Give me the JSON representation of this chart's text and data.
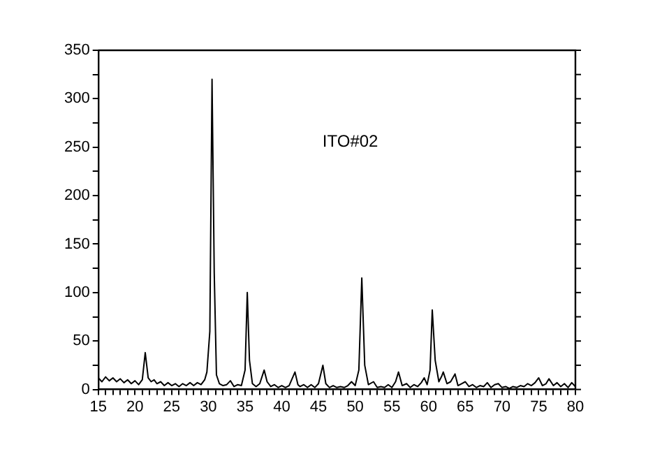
{
  "chart_data": {
    "type": "line",
    "annotations": [
      "ITO#02"
    ],
    "x": [
      15,
      15.5,
      16,
      16.5,
      17,
      17.5,
      18,
      18.5,
      19,
      19.5,
      20,
      20.5,
      21,
      21.4,
      21.8,
      22.2,
      22.6,
      23,
      23.5,
      24,
      24.5,
      25,
      25.5,
      26,
      26.5,
      27,
      27.5,
      28,
      28.5,
      29,
      29.5,
      29.8,
      30.2,
      30.5,
      30.8,
      31.1,
      31.5,
      32,
      32.5,
      33,
      33.5,
      34,
      34.5,
      35,
      35.3,
      35.6,
      36,
      36.5,
      37,
      37.6,
      38,
      38.5,
      39,
      39.5,
      40,
      40.5,
      41,
      41.8,
      42.2,
      42.5,
      43,
      43.5,
      44,
      44.5,
      45,
      45.6,
      46,
      46.5,
      47,
      47.5,
      48,
      48.5,
      49,
      49.5,
      50,
      50.5,
      50.9,
      51.3,
      51.8,
      52.5,
      53,
      53.5,
      54,
      54.5,
      55,
      55.5,
      55.9,
      56.4,
      57,
      57.5,
      58,
      58.5,
      59,
      59.4,
      59.8,
      60.2,
      60.5,
      60.9,
      61.4,
      61.8,
      62,
      62.5,
      63,
      63.6,
      64,
      64.5,
      65,
      65.5,
      66,
      66.5,
      67,
      67.5,
      68,
      68.5,
      69,
      69.5,
      70,
      70.5,
      71,
      71.5,
      72,
      72.5,
      73,
      73.5,
      74,
      74.5,
      75,
      75.5,
      76,
      76.4,
      77,
      77.5,
      78,
      78.5,
      79,
      79.5,
      80
    ],
    "series": [
      {
        "color": "#000000",
        "values": [
          12,
          8,
          13,
          9,
          12,
          8,
          11,
          7,
          10,
          6,
          9,
          5,
          10,
          38,
          12,
          8,
          10,
          6,
          8,
          4,
          7,
          4,
          6,
          3,
          6,
          4,
          7,
          4,
          7,
          5,
          10,
          18,
          60,
          320,
          120,
          15,
          6,
          4,
          5,
          9,
          3,
          5,
          4,
          20,
          100,
          30,
          6,
          3,
          6,
          20,
          8,
          3,
          5,
          2,
          4,
          2,
          4,
          18,
          5,
          3,
          5,
          2,
          5,
          2,
          6,
          25,
          6,
          2,
          4,
          2,
          3,
          2,
          4,
          8,
          4,
          20,
          115,
          25,
          5,
          8,
          2,
          3,
          2,
          5,
          2,
          8,
          18,
          4,
          6,
          2,
          5,
          3,
          7,
          12,
          5,
          20,
          82,
          30,
          8,
          14,
          18,
          6,
          8,
          16,
          4,
          6,
          8,
          3,
          5,
          2,
          4,
          3,
          7,
          2,
          5,
          6,
          2,
          3,
          1,
          3,
          2,
          4,
          3,
          6,
          4,
          7,
          12,
          4,
          6,
          11,
          4,
          7,
          3,
          6,
          2,
          7,
          3
        ]
      }
    ],
    "xlim": [
      15,
      80
    ],
    "ylim": [
      0,
      350
    ],
    "xticks": [
      15,
      {
        "value": 16,
        "label": null
      },
      {
        "value": 17,
        "label": null
      },
      {
        "value": 18,
        "label": null
      },
      {
        "value": 19,
        "label": null
      },
      20,
      {
        "value": 21,
        "label": null
      },
      {
        "value": 22,
        "label": null
      },
      {
        "value": 23,
        "label": null
      },
      {
        "value": 24,
        "label": null
      },
      25,
      {
        "value": 26,
        "label": null
      },
      {
        "value": 27,
        "label": null
      },
      {
        "value": 28,
        "label": null
      },
      {
        "value": 29,
        "label": null
      },
      30,
      {
        "value": 31,
        "label": null
      },
      {
        "value": 32,
        "label": null
      },
      {
        "value": 33,
        "label": null
      },
      {
        "value": 34,
        "label": null
      },
      35,
      {
        "value": 36,
        "label": null
      },
      {
        "value": 37,
        "label": null
      },
      {
        "value": 38,
        "label": null
      },
      {
        "value": 39,
        "label": null
      },
      40,
      {
        "value": 41,
        "label": null
      },
      {
        "value": 42,
        "label": null
      },
      {
        "value": 43,
        "label": null
      },
      {
        "value": 44,
        "label": null
      },
      45,
      {
        "value": 46,
        "label": null
      },
      {
        "value": 47,
        "label": null
      },
      {
        "value": 48,
        "label": null
      },
      {
        "value": 49,
        "label": null
      },
      50,
      {
        "value": 51,
        "label": null
      },
      {
        "value": 52,
        "label": null
      },
      {
        "value": 53,
        "label": null
      },
      {
        "value": 54,
        "label": null
      },
      55,
      {
        "value": 56,
        "label": null
      },
      {
        "value": 57,
        "label": null
      },
      {
        "value": 58,
        "label": null
      },
      {
        "value": 59,
        "label": null
      },
      60,
      {
        "value": 61,
        "label": null
      },
      {
        "value": 62,
        "label": null
      },
      {
        "value": 63,
        "label": null
      },
      {
        "value": 64,
        "label": null
      },
      65,
      {
        "value": 66,
        "label": null
      },
      {
        "value": 67,
        "label": null
      },
      {
        "value": 68,
        "label": null
      },
      {
        "value": 69,
        "label": null
      },
      70,
      {
        "value": 71,
        "label": null
      },
      {
        "value": 72,
        "label": null
      },
      {
        "value": 73,
        "label": null
      },
      {
        "value": 74,
        "label": null
      },
      75,
      {
        "value": 76,
        "label": null
      },
      {
        "value": 77,
        "label": null
      },
      {
        "value": 78,
        "label": null
      },
      {
        "value": 79,
        "label": null
      },
      80
    ],
    "yticks": [
      0,
      {
        "value": 25,
        "label": null
      },
      50,
      {
        "value": 75,
        "label": null
      },
      100,
      {
        "value": 125,
        "label": null
      },
      150,
      {
        "value": 175,
        "label": null
      },
      200,
      {
        "value": 225,
        "label": null
      },
      250,
      {
        "value": 275,
        "label": null
      },
      300,
      {
        "value": 325,
        "label": null
      },
      350
    ]
  }
}
